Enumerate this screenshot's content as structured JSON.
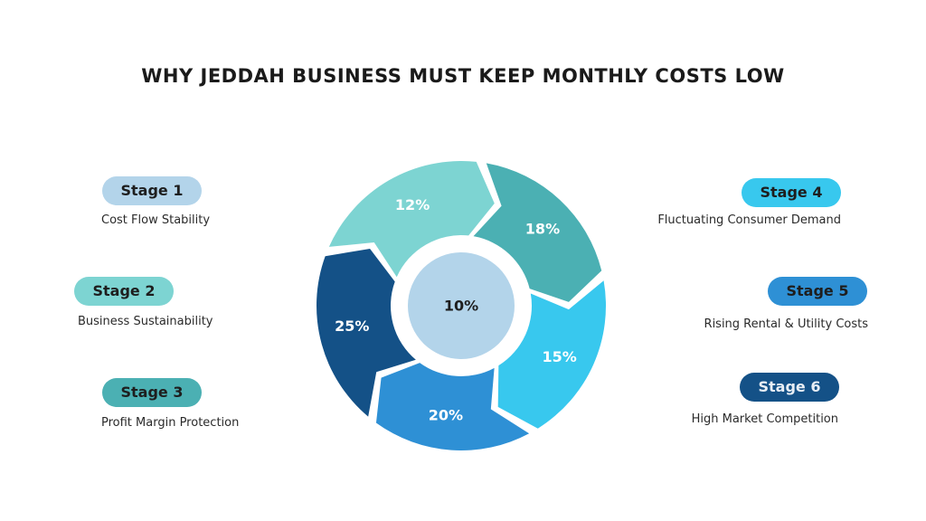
{
  "title": "WHY JEDDAH BUSINESS MUST KEEP MONTHLY COSTS LOW",
  "center": {
    "label": "10%",
    "color": "#B3D4EA"
  },
  "segments": [
    {
      "label": "12%",
      "color": "#7DD4D2"
    },
    {
      "label": "18%",
      "color": "#4BB0B3"
    },
    {
      "label": "15%",
      "color": "#38C8EE"
    },
    {
      "label": "20%",
      "color": "#2E90D5"
    },
    {
      "label": "25%",
      "color": "#145187"
    }
  ],
  "stages": [
    {
      "name": "Stage 1",
      "desc": "Cost Flow Stability",
      "color": "#B3D4EA",
      "text": "#1e1e1e"
    },
    {
      "name": "Stage 2",
      "desc": "Business Sustainability",
      "color": "#7DD4D2",
      "text": "#1e1e1e"
    },
    {
      "name": "Stage 3",
      "desc": "Profit Margin Protection",
      "color": "#4BB0B3",
      "text": "#1e1e1e"
    },
    {
      "name": "Stage 4",
      "desc": "Fluctuating Consumer Demand",
      "color": "#38C8EE",
      "text": "#1e1e1e"
    },
    {
      "name": "Stage 5",
      "desc": "Rising Rental & Utility Costs",
      "color": "#2E90D5",
      "text": "#1e1e1e"
    },
    {
      "name": "Stage 6",
      "desc": "High Market Competition",
      "color": "#145187",
      "text": "#e8eef5"
    }
  ]
}
